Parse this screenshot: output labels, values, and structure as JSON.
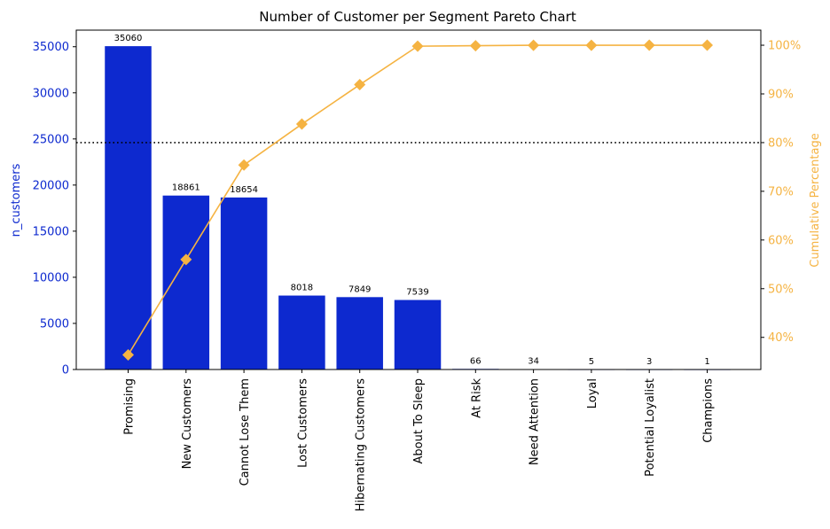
{
  "chart_data": {
    "type": "bar",
    "title": "Number of Customer per Segment Pareto Chart",
    "categories": [
      "Promising",
      "New Customers",
      "Cannot Lose Them",
      "Lost Customers",
      "Hibernating Customers",
      "About To Sleep",
      "At Risk",
      "Need Attention",
      "Loyal",
      "Potential Loyalist",
      "Champions"
    ],
    "series": [
      {
        "name": "n_customers",
        "type": "bar",
        "axis": "left",
        "values": [
          35060,
          18861,
          18654,
          8018,
          7849,
          7539,
          66,
          34,
          5,
          3,
          1
        ],
        "data_labels": [
          "35060",
          "18861",
          "18654",
          "8018",
          "7849",
          "7539",
          "66",
          "34",
          "5",
          "3",
          "1"
        ]
      },
      {
        "name": "Cumulative Percentage",
        "type": "line",
        "axis": "right",
        "marker": "diamond",
        "values": [
          36.4,
          56.0,
          75.4,
          83.8,
          91.9,
          99.8,
          99.9,
          99.99,
          99.99,
          100.0,
          100.0
        ]
      }
    ],
    "ylabel": "n_customers",
    "ylabel_right": "Cumulative Percentage",
    "ylim": [
      0,
      36800
    ],
    "yticks": [
      0,
      5000,
      10000,
      15000,
      20000,
      25000,
      30000,
      35000
    ],
    "ylim_right": [
      33.4,
      103.1
    ],
    "yticks_right": [
      40,
      50,
      60,
      70,
      80,
      90,
      100
    ],
    "ytick_right_labels": [
      "40%",
      "50%",
      "60%",
      "70%",
      "80%",
      "90%",
      "100%"
    ],
    "threshold_line": {
      "value": 80,
      "axis": "right",
      "style": "dotted"
    },
    "grid": false,
    "colors": {
      "bar": "#0d29cf",
      "line": "#f5b342",
      "threshold": "#000000"
    }
  }
}
